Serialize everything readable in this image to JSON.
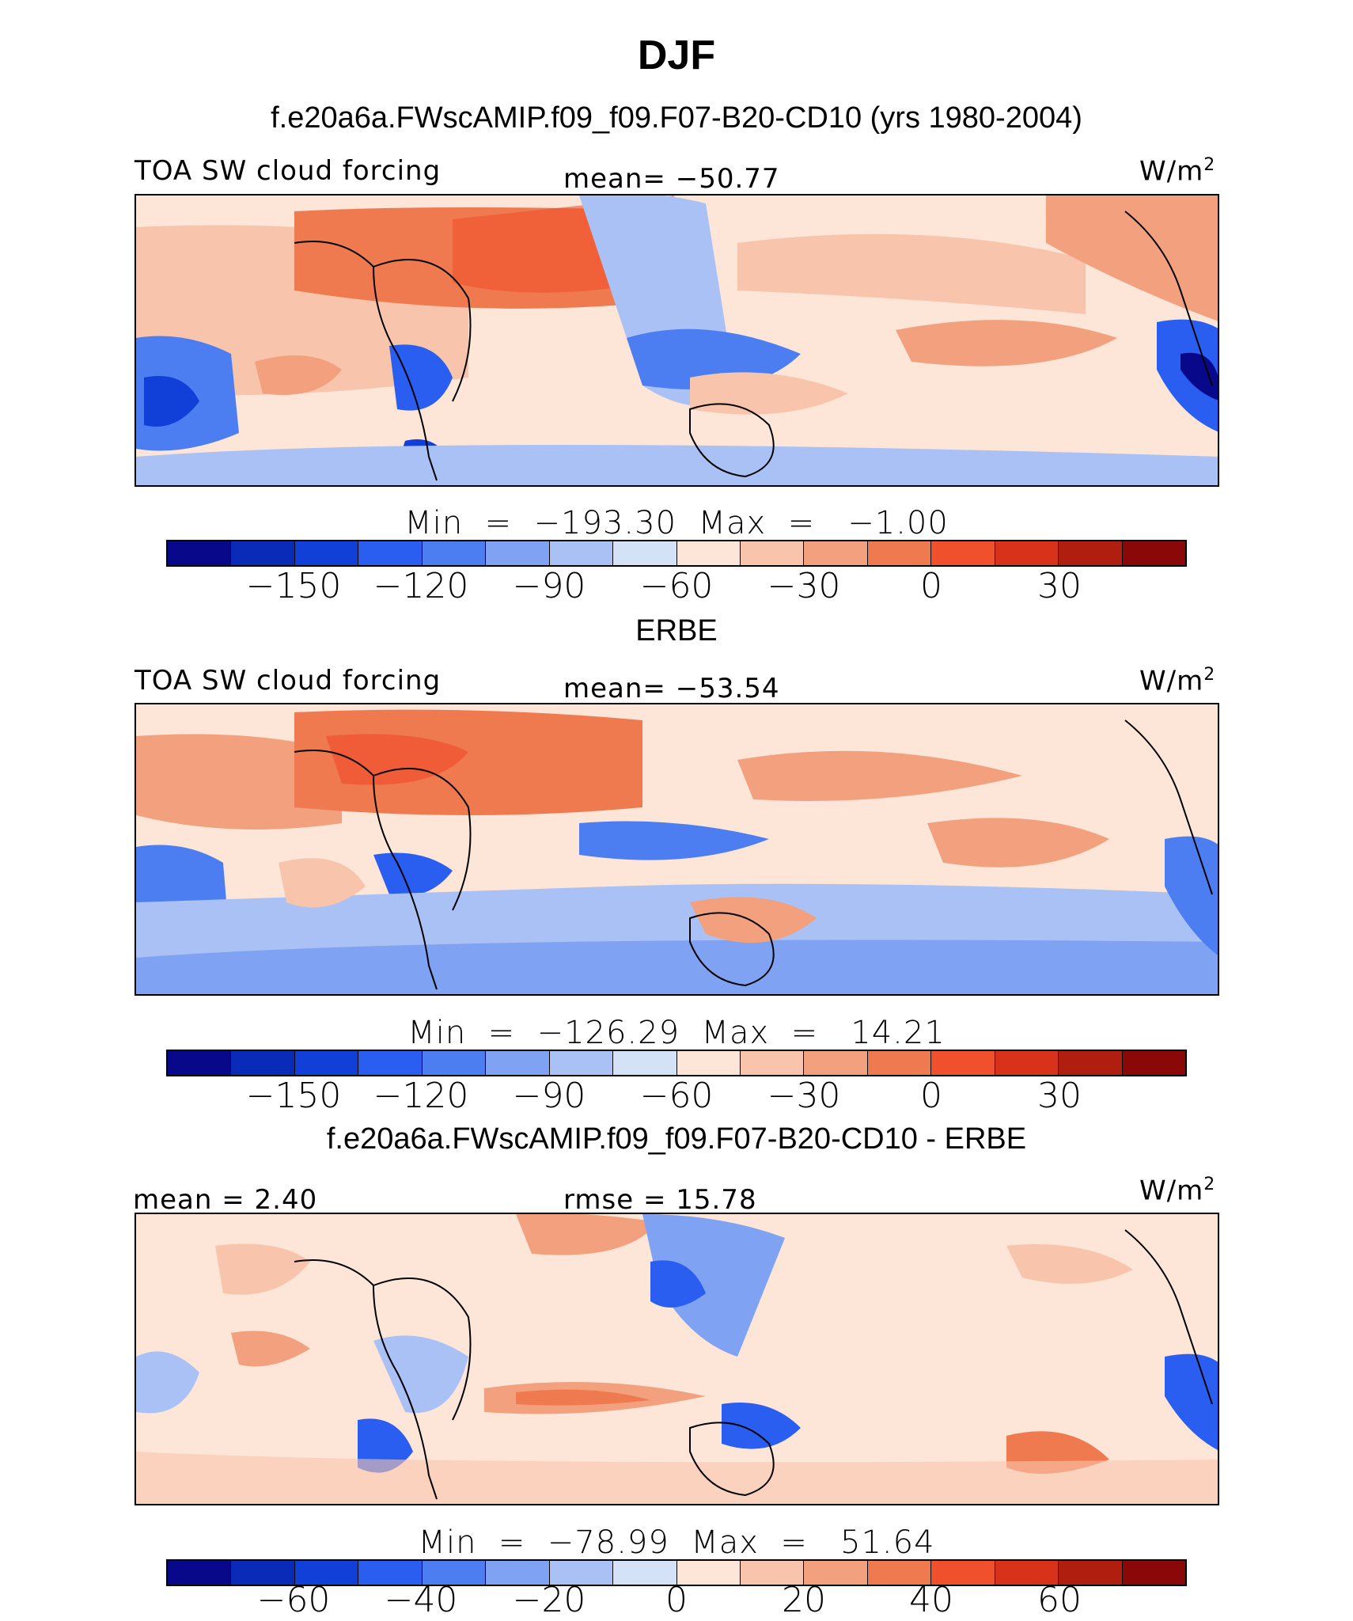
{
  "main_title": "DJF",
  "panels": [
    {
      "title": "f.e20a6a.FWscAMIP.f09_f09.F07-B20-CD10 (yrs 1980-2004)",
      "left_label": "TOA SW cloud forcing",
      "center_label": "mean= −50.77",
      "units": "W/m",
      "units_sup": "2",
      "minmax": "Min  =  −193.30  Max  =   −1.00",
      "ticks": [
        "−150",
        "−120",
        "−90",
        "−60",
        "−30",
        "0",
        "30"
      ]
    },
    {
      "title": "ERBE",
      "left_label": "TOA SW cloud forcing",
      "center_label": "mean= −53.54",
      "units": "W/m",
      "units_sup": "2",
      "minmax": "Min  =  −126.29  Max  =   14.21",
      "ticks": [
        "−150",
        "−120",
        "−90",
        "−60",
        "−30",
        "0",
        "30"
      ]
    },
    {
      "title": "f.e20a6a.FWscAMIP.f09_f09.F07-B20-CD10 - ERBE",
      "left_label": "mean  =   2.40",
      "center_label": "rmse  =   15.78",
      "units": "W/m",
      "units_sup": "2",
      "minmax": "Min  =  −78.99  Max  =   51.64",
      "ticks": [
        "−60",
        "−40",
        "−20",
        "0",
        "20",
        "40",
        "60"
      ]
    }
  ],
  "colorbar_colors": [
    "#08088a",
    "#0a2ab8",
    "#1040d8",
    "#2a5ef0",
    "#4c7ef2",
    "#7fa2f2",
    "#a9c1f4",
    "#d4e2f8",
    "#fde6d8",
    "#f8c4ab",
    "#f3a07e",
    "#ef7a50",
    "#f0502c",
    "#d8321a",
    "#b01e10",
    "#8a0808"
  ]
}
